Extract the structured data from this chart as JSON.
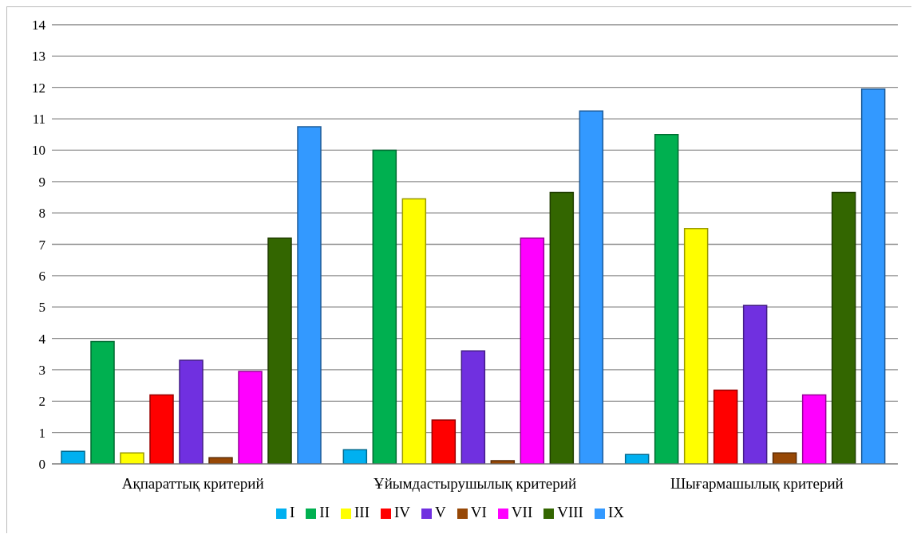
{
  "chart_data": {
    "type": "bar",
    "categories": [
      "Ақпараттық критерий",
      "Ұйымдастырушылық критерий",
      "Шығармашылық критерий"
    ],
    "series": [
      {
        "name": "I",
        "color": "#00b0f0",
        "values": [
          0.4,
          0.45,
          0.3
        ]
      },
      {
        "name": "II",
        "color": "#00b050",
        "values": [
          3.9,
          10.0,
          10.5
        ]
      },
      {
        "name": "III",
        "color": "#ffff00",
        "values": [
          0.35,
          8.45,
          7.5
        ]
      },
      {
        "name": "IV",
        "color": "#ff0000",
        "values": [
          2.2,
          1.4,
          2.35
        ]
      },
      {
        "name": "V",
        "color": "#7030e0",
        "values": [
          3.3,
          3.6,
          5.05
        ]
      },
      {
        "name": "VI",
        "color": "#974806",
        "values": [
          0.2,
          0.1,
          0.35
        ]
      },
      {
        "name": "VII",
        "color": "#ff00ff",
        "values": [
          2.95,
          7.2,
          2.2
        ]
      },
      {
        "name": "VIII",
        "color": "#336600",
        "values": [
          7.2,
          8.65,
          8.65
        ]
      },
      {
        "name": "IX",
        "color": "#3399ff",
        "values": [
          10.75,
          11.25,
          11.95
        ]
      }
    ],
    "ylim": [
      0,
      14
    ],
    "yticks": [
      0,
      1,
      2,
      3,
      4,
      5,
      6,
      7,
      8,
      9,
      10,
      11,
      12,
      13,
      14
    ],
    "grid": "y",
    "legend": "bottom"
  }
}
